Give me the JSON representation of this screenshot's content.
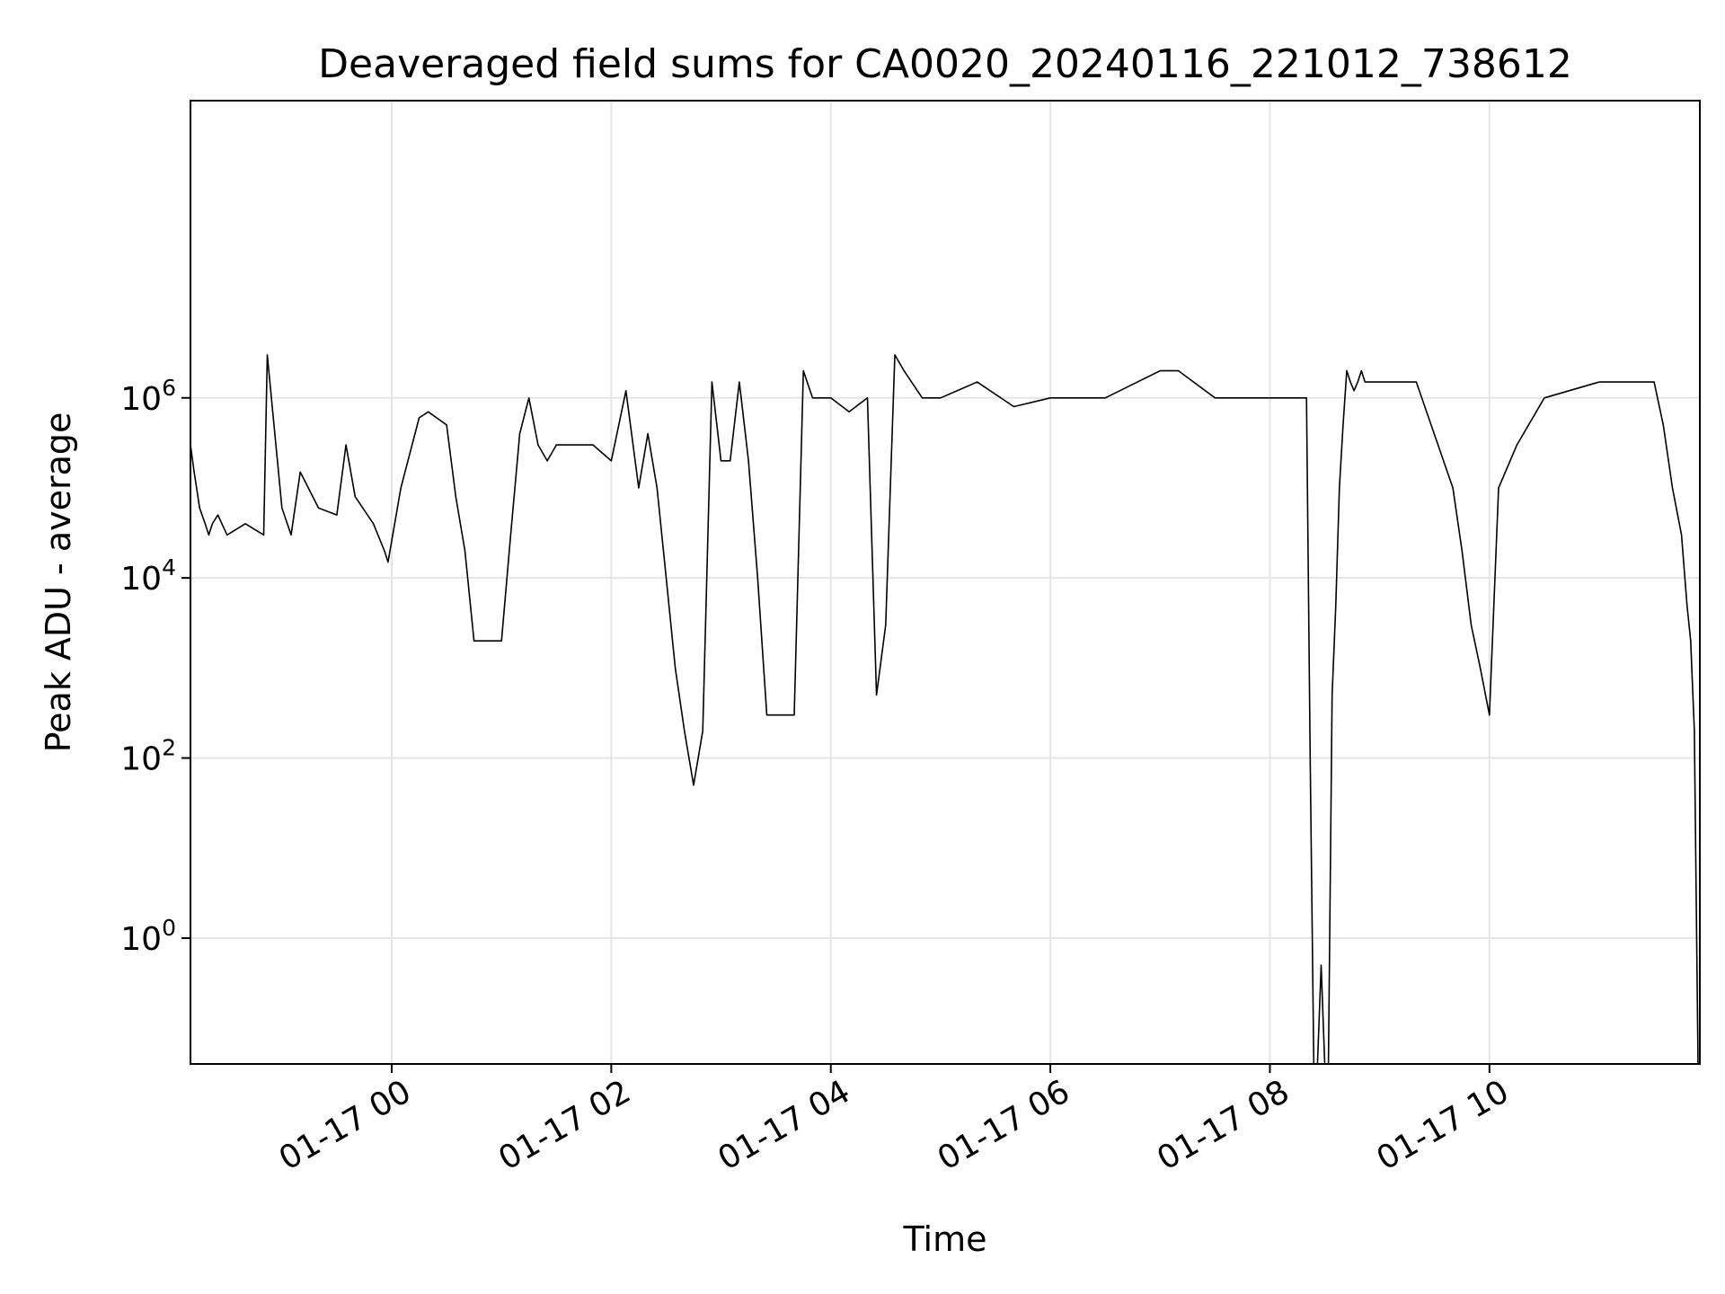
{
  "chart_data": {
    "type": "line",
    "title": "Deaveraged field sums for CA0020_20240116_221012_738612",
    "xlabel": "Time",
    "ylabel": "Peak ADU - average",
    "x_axis": {
      "kind": "datetime",
      "range": [
        "2024-01-16T22:10",
        "2024-01-17T11:55"
      ],
      "ticks": [
        {
          "at": "2024-01-17T00:00",
          "label": "01-17 00"
        },
        {
          "at": "2024-01-17T02:00",
          "label": "01-17 02"
        },
        {
          "at": "2024-01-17T04:00",
          "label": "01-17 04"
        },
        {
          "at": "2024-01-17T06:00",
          "label": "01-17 06"
        },
        {
          "at": "2024-01-17T08:00",
          "label": "01-17 08"
        },
        {
          "at": "2024-01-17T10:00",
          "label": "01-17 10"
        }
      ]
    },
    "y_axis": {
      "scale": "log",
      "range": [
        0.04,
        2000000000
      ],
      "ticks": [
        {
          "value": 1,
          "base": "10",
          "exp": "0"
        },
        {
          "value": 100,
          "base": "10",
          "exp": "2"
        },
        {
          "value": 10000,
          "base": "10",
          "exp": "4"
        },
        {
          "value": 1000000,
          "base": "10",
          "exp": "6"
        }
      ]
    },
    "grid": true,
    "legend": "none",
    "line_color": "#000000",
    "grid_color": "#e5e5e5",
    "series": [
      {
        "x": [
          "2024-01-16T22:10",
          "2024-01-16T22:12",
          "2024-01-16T22:15",
          "2024-01-16T22:18",
          "2024-01-16T22:20",
          "2024-01-16T22:22",
          "2024-01-16T22:25",
          "2024-01-16T22:30",
          "2024-01-16T22:40",
          "2024-01-16T22:50",
          "2024-01-16T22:52",
          "2024-01-16T23:00",
          "2024-01-16T23:05",
          "2024-01-16T23:10",
          "2024-01-16T23:20",
          "2024-01-16T23:30",
          "2024-01-16T23:35",
          "2024-01-16T23:40",
          "2024-01-16T23:50",
          "2024-01-16T23:56",
          "2024-01-16T23:58",
          "2024-01-17T00:05",
          "2024-01-17T00:15",
          "2024-01-17T00:20",
          "2024-01-17T00:30",
          "2024-01-17T00:35",
          "2024-01-17T00:40",
          "2024-01-17T00:45",
          "2024-01-17T00:50",
          "2024-01-17T01:00",
          "2024-01-17T01:05",
          "2024-01-17T01:10",
          "2024-01-17T01:15",
          "2024-01-17T01:20",
          "2024-01-17T01:25",
          "2024-01-17T01:30",
          "2024-01-17T01:40",
          "2024-01-17T01:50",
          "2024-01-17T02:00",
          "2024-01-17T02:08",
          "2024-01-17T02:15",
          "2024-01-17T02:20",
          "2024-01-17T02:25",
          "2024-01-17T02:30",
          "2024-01-17T02:35",
          "2024-01-17T02:40",
          "2024-01-17T02:45",
          "2024-01-17T02:50",
          "2024-01-17T02:55",
          "2024-01-17T03:00",
          "2024-01-17T03:05",
          "2024-01-17T03:10",
          "2024-01-17T03:15",
          "2024-01-17T03:20",
          "2024-01-17T03:25",
          "2024-01-17T03:30",
          "2024-01-17T03:35",
          "2024-01-17T03:40",
          "2024-01-17T03:45",
          "2024-01-17T03:50",
          "2024-01-17T04:00",
          "2024-01-17T04:10",
          "2024-01-17T04:20",
          "2024-01-17T04:25",
          "2024-01-17T04:30",
          "2024-01-17T04:35",
          "2024-01-17T04:40",
          "2024-01-17T04:50",
          "2024-01-17T05:00",
          "2024-01-17T05:20",
          "2024-01-17T05:40",
          "2024-01-17T06:00",
          "2024-01-17T06:30",
          "2024-01-17T07:00",
          "2024-01-17T07:10",
          "2024-01-17T07:30",
          "2024-01-17T08:00",
          "2024-01-17T08:15",
          "2024-01-17T08:20",
          "2024-01-17T08:22",
          "2024-01-17T08:24",
          "2024-01-17T08:26",
          "2024-01-17T08:28",
          "2024-01-17T08:30",
          "2024-01-17T08:32",
          "2024-01-17T08:34",
          "2024-01-17T08:36",
          "2024-01-17T08:38",
          "2024-01-17T08:40",
          "2024-01-17T08:42",
          "2024-01-17T08:44",
          "2024-01-17T08:46",
          "2024-01-17T08:48",
          "2024-01-17T08:50",
          "2024-01-17T08:52",
          "2024-01-17T08:55",
          "2024-01-17T09:00",
          "2024-01-17T09:20",
          "2024-01-17T09:40",
          "2024-01-17T09:45",
          "2024-01-17T09:50",
          "2024-01-17T09:55",
          "2024-01-17T10:00",
          "2024-01-17T10:05",
          "2024-01-17T10:15",
          "2024-01-17T10:30",
          "2024-01-17T11:00",
          "2024-01-17T11:20",
          "2024-01-17T11:30",
          "2024-01-17T11:35",
          "2024-01-17T11:40",
          "2024-01-17T11:45",
          "2024-01-17T11:48",
          "2024-01-17T11:50",
          "2024-01-17T11:52",
          "2024-01-17T11:54"
        ],
        "y": [
          300000,
          150000,
          60000,
          40000,
          30000,
          40000,
          50000,
          30000,
          40000,
          30000,
          3000000,
          60000,
          30000,
          150000,
          60000,
          50000,
          300000,
          80000,
          40000,
          20000,
          15000,
          100000,
          600000,
          700000,
          500000,
          80000,
          20000,
          2000,
          2000,
          2000,
          30000,
          400000,
          1000000,
          300000,
          200000,
          300000,
          300000,
          300000,
          200000,
          1200000,
          100000,
          400000,
          100000,
          10000,
          1000,
          200,
          50,
          200,
          1500000,
          200000,
          200000,
          1500000,
          200000,
          10000,
          300,
          300,
          300,
          300,
          2000000,
          1000000,
          1000000,
          700000,
          1000000,
          500,
          3000,
          3000000,
          2000000,
          1000000,
          1000000,
          1500000,
          800000,
          1000000,
          1000000,
          2000000,
          2000000,
          1000000,
          1000000,
          1000000,
          1000000,
          100,
          0.04,
          0.04,
          0.5,
          0.04,
          0.04,
          500,
          5000,
          100000,
          500000,
          2000000,
          1500000,
          1200000,
          1500000,
          2000000,
          1500000,
          1500000,
          1500000,
          1500000,
          100000,
          20000,
          3000,
          1000,
          300,
          100000,
          300000,
          1000000,
          1500000,
          1500000,
          1500000,
          500000,
          100000,
          30000,
          5000,
          2000,
          200,
          0.04
        ]
      }
    ]
  }
}
